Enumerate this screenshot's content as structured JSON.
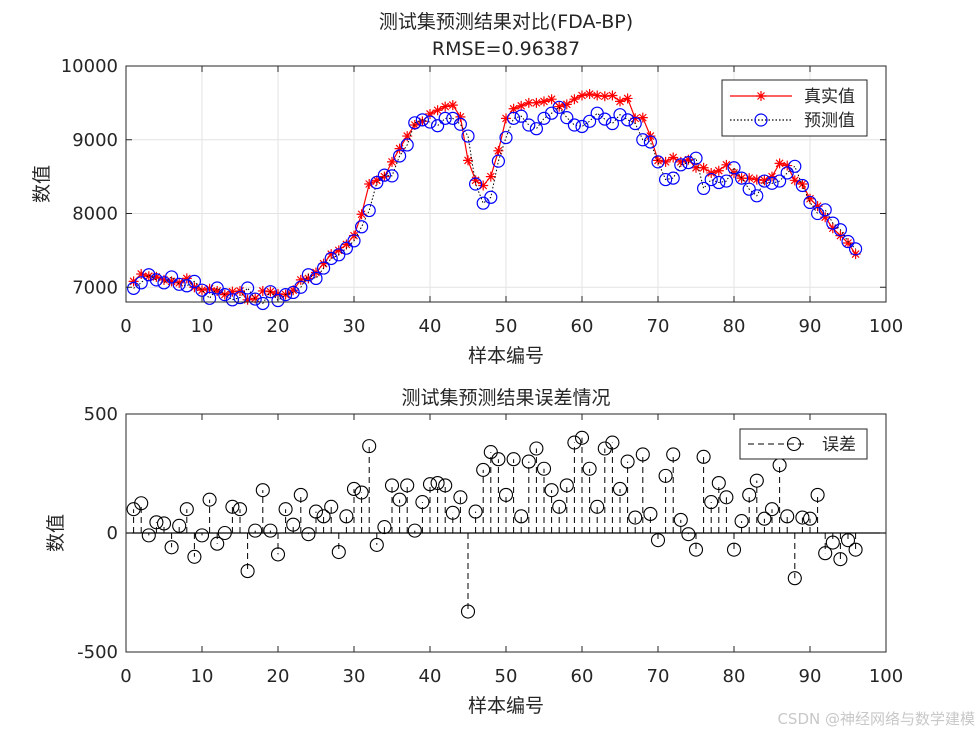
{
  "watermark": "CSDN @神经网络与数学建模",
  "chart_data": [
    {
      "type": "line",
      "title": "测试集预测结果对比(FDA-BP)",
      "subtitle": "RMSE=0.96387",
      "xlabel": "样本编号",
      "ylabel": "数值",
      "xlim": [
        0,
        100
      ],
      "ylim": [
        6800,
        10000
      ],
      "xticks": [
        0,
        10,
        20,
        30,
        40,
        50,
        60,
        70,
        80,
        90,
        100
      ],
      "yticks": [
        7000,
        8000,
        9000,
        10000
      ],
      "grid": true,
      "legend_position": "top-right",
      "x": [
        1,
        2,
        3,
        4,
        5,
        6,
        7,
        8,
        9,
        10,
        11,
        12,
        13,
        14,
        15,
        16,
        17,
        18,
        19,
        20,
        21,
        22,
        23,
        24,
        25,
        26,
        27,
        28,
        29,
        30,
        31,
        32,
        33,
        34,
        35,
        36,
        37,
        38,
        39,
        40,
        41,
        42,
        43,
        44,
        45,
        46,
        47,
        48,
        49,
        50,
        51,
        52,
        53,
        54,
        55,
        56,
        57,
        58,
        59,
        60,
        61,
        62,
        63,
        64,
        65,
        66,
        67,
        68,
        69,
        70,
        71,
        72,
        73,
        74,
        75,
        76,
        77,
        78,
        79,
        80,
        81,
        82,
        83,
        84,
        85,
        86,
        87,
        88,
        89,
        90,
        91,
        92,
        93,
        94,
        95,
        96
      ],
      "series": [
        {
          "name": "真实值",
          "color": "#ff0000",
          "marker": "asterisk",
          "line": "solid",
          "values": [
            7080,
            7180,
            7150,
            7140,
            7100,
            7080,
            7060,
            7120,
            7000,
            6960,
            6980,
            6950,
            6900,
            6940,
            6950,
            6830,
            6850,
            6950,
            6940,
            6910,
            6900,
            6960,
            7100,
            7120,
            7200,
            7320,
            7450,
            7500,
            7580,
            7700,
            7990,
            8400,
            8450,
            8500,
            8700,
            8880,
            9050,
            9200,
            9250,
            9350,
            9400,
            9450,
            9470,
            9310,
            8720,
            8450,
            8380,
            8500,
            8850,
            9290,
            9420,
            9460,
            9500,
            9500,
            9520,
            9550,
            9450,
            9480,
            9550,
            9600,
            9620,
            9600,
            9590,
            9600,
            9520,
            9560,
            9290,
            9300,
            9050,
            8720,
            8700,
            8760,
            8700,
            8730,
            8620,
            8620,
            8550,
            8580,
            8660,
            8550,
            8480,
            8480,
            8460,
            8450,
            8500,
            8680,
            8650,
            8450,
            8400,
            8200,
            8100,
            7950,
            7800,
            7700,
            7600,
            7450
          ]
        },
        {
          "name": "预测值",
          "color": "#0000ff",
          "marker": "circle",
          "line": "dotted",
          "values": [
            6985,
            7060,
            7170,
            7100,
            7060,
            7140,
            7040,
            7020,
            7080,
            6960,
            6850,
            6990,
            6900,
            6830,
            6860,
            6990,
            6840,
            6780,
            6940,
            6820,
            6900,
            6930,
            7000,
            7170,
            7120,
            7260,
            7390,
            7440,
            7530,
            7630,
            7820,
            8040,
            8420,
            8520,
            8510,
            8780,
            8930,
            9230,
            9270,
            9240,
            9190,
            9290,
            9290,
            9210,
            9050,
            8400,
            8140,
            8220,
            8710,
            9030,
            9290,
            9320,
            9200,
            9150,
            9290,
            9360,
            9440,
            9300,
            9200,
            9180,
            9250,
            9360,
            9280,
            9220,
            9340,
            9270,
            9220,
            9000,
            8970,
            8700,
            8460,
            8480,
            8660,
            8690,
            8750,
            8340,
            8460,
            8420,
            8440,
            8620,
            8480,
            8330,
            8240,
            8440,
            8410,
            8440,
            8550,
            8640,
            8380,
            8150,
            8000,
            8050,
            7870,
            7780,
            7620,
            7520
          ]
        }
      ]
    },
    {
      "type": "stem",
      "title": "测试集预测结果误差情况",
      "xlabel": "样本编号",
      "ylabel": "数值",
      "xlim": [
        0,
        100
      ],
      "ylim": [
        -500,
        500
      ],
      "xticks": [
        0,
        10,
        20,
        30,
        40,
        50,
        60,
        70,
        80,
        90,
        100
      ],
      "yticks": [
        -500,
        0,
        500
      ],
      "grid": false,
      "legend_position": "top-right",
      "x": [
        1,
        2,
        3,
        4,
        5,
        6,
        7,
        8,
        9,
        10,
        11,
        12,
        13,
        14,
        15,
        16,
        17,
        18,
        19,
        20,
        21,
        22,
        23,
        24,
        25,
        26,
        27,
        28,
        29,
        30,
        31,
        32,
        33,
        34,
        35,
        36,
        37,
        38,
        39,
        40,
        41,
        42,
        43,
        44,
        45,
        46,
        47,
        48,
        49,
        50,
        51,
        52,
        53,
        54,
        55,
        56,
        57,
        58,
        59,
        60,
        61,
        62,
        63,
        64,
        65,
        66,
        67,
        68,
        69,
        70,
        71,
        72,
        73,
        74,
        75,
        76,
        77,
        78,
        79,
        80,
        81,
        82,
        83,
        84,
        85,
        86,
        87,
        88,
        89,
        90,
        91,
        92,
        93,
        94,
        95,
        96
      ],
      "series": [
        {
          "name": "误差",
          "color": "#000000",
          "marker": "circle",
          "line": "dashed",
          "values": [
            100,
            125,
            -10,
            45,
            40,
            -60,
            30,
            100,
            -100,
            -10,
            140,
            -45,
            0,
            110,
            100,
            -160,
            10,
            180,
            10,
            -90,
            100,
            35,
            160,
            -5,
            90,
            70,
            110,
            -80,
            70,
            185,
            170,
            365,
            -50,
            25,
            200,
            140,
            200,
            10,
            130,
            205,
            210,
            200,
            85,
            150,
            -330,
            90,
            265,
            340,
            310,
            160,
            310,
            70,
            300,
            355,
            270,
            180,
            110,
            200,
            380,
            400,
            270,
            110,
            355,
            380,
            185,
            300,
            65,
            330,
            80,
            -30,
            240,
            330,
            55,
            -5,
            -70,
            320,
            130,
            210,
            150,
            -70,
            50,
            160,
            220,
            60,
            100,
            285,
            70,
            -190,
            65,
            60,
            160,
            -85,
            -40,
            -110,
            -30,
            -70
          ]
        }
      ]
    }
  ]
}
